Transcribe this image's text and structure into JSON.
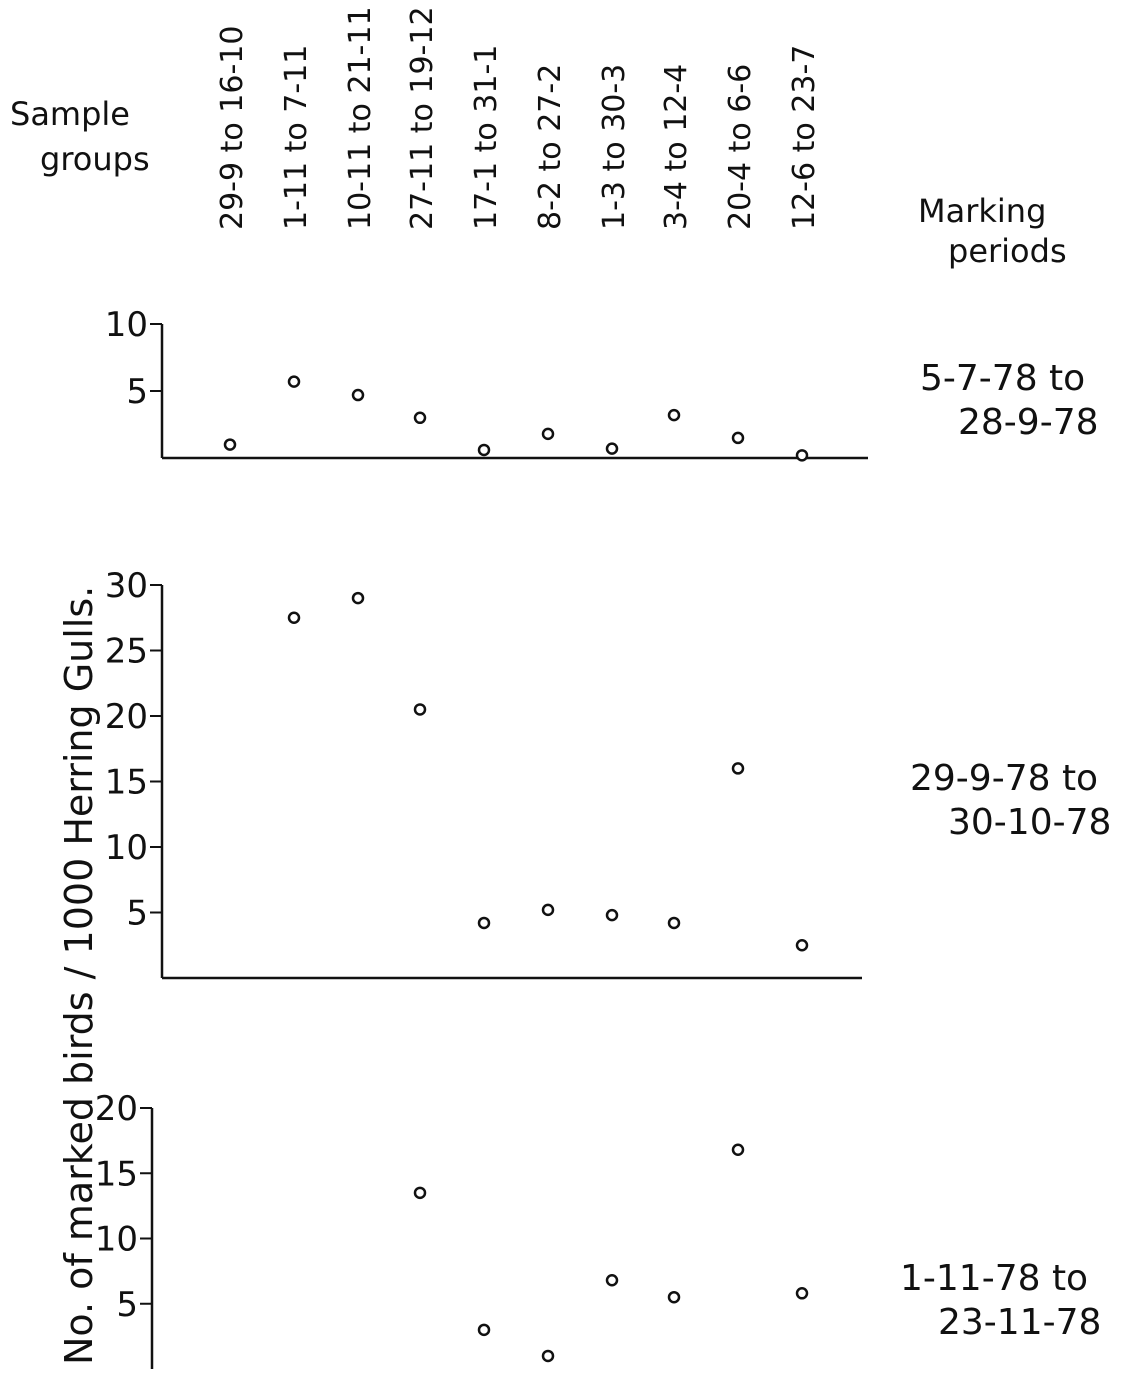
{
  "sample_groups_label": "Sample groups",
  "marking_periods_label": "Marking periods",
  "y_axis_label": "No. of marked birds / 1000 Herring Gulls.",
  "chart_data": [
    {
      "type": "scatter",
      "period_line1": "5-7-78 to",
      "period_line2": "28-9-78",
      "categories": [
        "29-9 to 16-10",
        "1-11 to 7-11",
        "10-11 to 21-11",
        "27-11 to 19-12",
        "17-1 to 31-1",
        "8-2 to 27-2",
        "1-3 to 30-3",
        "3-4 to 12-4",
        "20-4 to 6-6",
        "12-6 to 23-7"
      ],
      "values": [
        1,
        5.7,
        4.7,
        3,
        0.6,
        1.8,
        0.7,
        3.2,
        1.5,
        0.2
      ],
      "yticks": [
        "10",
        "5"
      ],
      "ylim": [
        0,
        10
      ]
    },
    {
      "type": "scatter",
      "period_line1": "29-9-78 to",
      "period_line2": "30-10-78",
      "categories": [
        "29-9 to 16-10",
        "1-11 to 7-11",
        "10-11 to 21-11",
        "27-11 to 19-12",
        "17-1 to 31-1",
        "8-2 to 27-2",
        "1-3 to 30-3",
        "3-4 to 12-4",
        "20-4 to 6-6",
        "12-6 to 23-7"
      ],
      "values": [
        null,
        27.5,
        29,
        20.5,
        4.2,
        5.2,
        4.8,
        4.2,
        16,
        2.5
      ],
      "yticks": [
        "30",
        "25",
        "20",
        "15",
        "10",
        "5"
      ],
      "ylim": [
        0,
        30
      ]
    },
    {
      "type": "scatter",
      "period_line1": "1-11-78 to",
      "period_line2": "23-11-78",
      "categories": [
        "29-9 to 16-10",
        "1-11 to 7-11",
        "10-11 to 21-11",
        "27-11 to 19-12",
        "17-1 to 31-1",
        "8-2 to 27-2",
        "1-3 to 30-3",
        "3-4 to 12-4",
        "20-4 to 6-6",
        "12-6 to 23-7"
      ],
      "values": [
        null,
        null,
        null,
        13.5,
        3,
        1,
        6.8,
        5.5,
        16.8,
        5.8
      ],
      "yticks": [
        "20",
        "15",
        "10",
        "5"
      ],
      "ylim": [
        0,
        20
      ]
    }
  ]
}
